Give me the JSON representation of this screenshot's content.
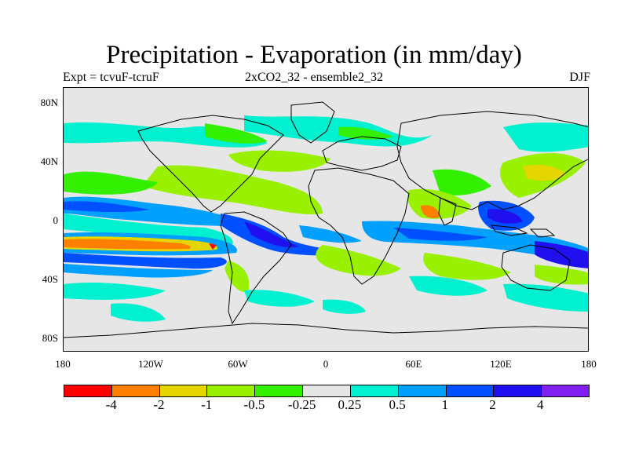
{
  "title": "Precipitation - Evaporation (in mm/day)",
  "subtitle_left": "Expt = tcvuF-tcruF",
  "subtitle_center": "2xCO2_32 - ensemble2_32",
  "subtitle_right": "DJF",
  "lat_ticks": [
    "80N",
    "40N",
    "0",
    "40S",
    "80S"
  ],
  "lon_ticks": [
    "180",
    "120W",
    "60W",
    "0",
    "60E",
    "120E",
    "180"
  ],
  "colorbar": {
    "colors": [
      "#ff0000",
      "#ff7f00",
      "#e6d600",
      "#99f000",
      "#33f000",
      "#e6e6e6",
      "#00f0d0",
      "#00a0ff",
      "#0050ff",
      "#2010f0",
      "#8020f0"
    ],
    "labels": [
      "-4",
      "-2",
      "-1",
      "-0.5",
      "-0.25",
      "0.25",
      "0.5",
      "1",
      "2",
      "4"
    ]
  },
  "background_color": "#e6e6e6"
}
